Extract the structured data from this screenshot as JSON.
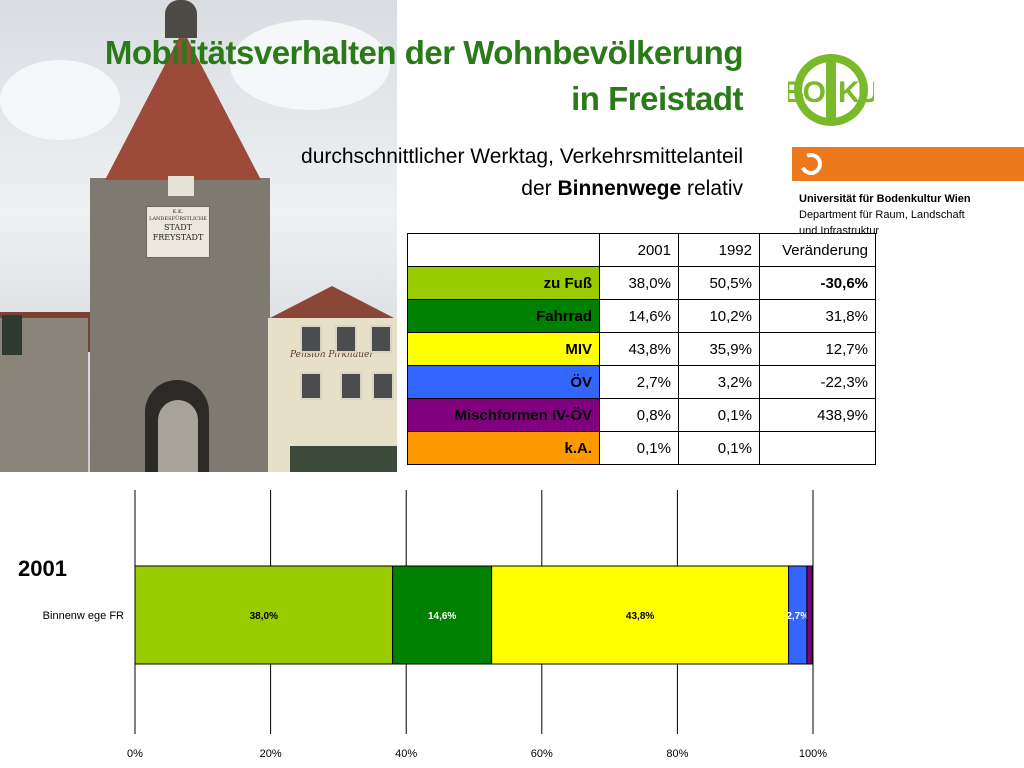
{
  "title": {
    "line1": "Mobilitätsverhalten der Wohnbevölkerung",
    "line2": "in Freistadt"
  },
  "subtitle": {
    "line1": "durchschnittlicher Werktag, Verkehrsmittelanteil",
    "line2_prefix": "der ",
    "line2_bold": "Binnenwege",
    "line2_suffix": " relativ"
  },
  "logo": {
    "text_left": "BO",
    "text_right": "KU"
  },
  "university": {
    "name": "Universität für Bodenkultur Wien",
    "dept_line1": "Department für Raum, Landschaft",
    "dept_line2": "und Infrastruktur"
  },
  "photo_sign": {
    "line1": "K.K.",
    "line2": "LANDESFÜRSTLICHE",
    "line3": "STADT",
    "line4": "FREYSTADT",
    "house_sign": "Pension Pirkhauer"
  },
  "table": {
    "headers": [
      "",
      "2001",
      "1992",
      "Veränderung"
    ],
    "rows": [
      {
        "mode": "zu Fuß",
        "y2001": "38,0%",
        "y1992": "50,5%",
        "change": "-30,6%",
        "change_bold": true,
        "color": "#99cc00"
      },
      {
        "mode": "Fahrrad",
        "y2001": "14,6%",
        "y1992": "10,2%",
        "change": "31,8%",
        "change_bold": false,
        "color": "#008000"
      },
      {
        "mode": "MIV",
        "y2001": "43,8%",
        "y1992": "35,9%",
        "change": "12,7%",
        "change_bold": false,
        "color": "#ffff00"
      },
      {
        "mode": "ÖV",
        "y2001": "2,7%",
        "y1992": "3,2%",
        "change": "-22,3%",
        "change_bold": false,
        "color": "#3366ff"
      },
      {
        "mode": "Mischformen IV-ÖV",
        "y2001": "0,8%",
        "y1992": "0,1%",
        "change": "438,9%",
        "change_bold": false,
        "color": "#800080"
      },
      {
        "mode": "k.A.",
        "y2001": "0,1%",
        "y1992": "0,1%",
        "change": "",
        "change_bold": false,
        "color": "#ff9900"
      }
    ]
  },
  "chart_year": "2001",
  "chart_data": {
    "type": "bar",
    "orientation": "horizontal",
    "stacked": true,
    "categories": [
      "Binnenw ege FR"
    ],
    "series": [
      {
        "values": [
          38.0
        ],
        "label": "38,0%",
        "color": "#99cc00"
      },
      {
        "values": [
          14.6
        ],
        "label": "14,6%",
        "color": "#008000"
      },
      {
        "values": [
          43.8
        ],
        "label": "43,8%",
        "color": "#ffff00"
      },
      {
        "values": [
          2.7
        ],
        "label": "2,7%",
        "color": "#3366ff"
      },
      {
        "values": [
          0.8
        ],
        "label": "",
        "color": "#800080"
      },
      {
        "values": [
          0.1
        ],
        "label": "",
        "color": "#ff9900"
      }
    ],
    "xlim": [
      0,
      100
    ],
    "xticks": [
      "0%",
      "20%",
      "40%",
      "60%",
      "80%",
      "100%"
    ],
    "xtick_values": [
      0,
      20,
      40,
      60,
      80,
      100
    ],
    "grid": true,
    "legend": "none"
  }
}
